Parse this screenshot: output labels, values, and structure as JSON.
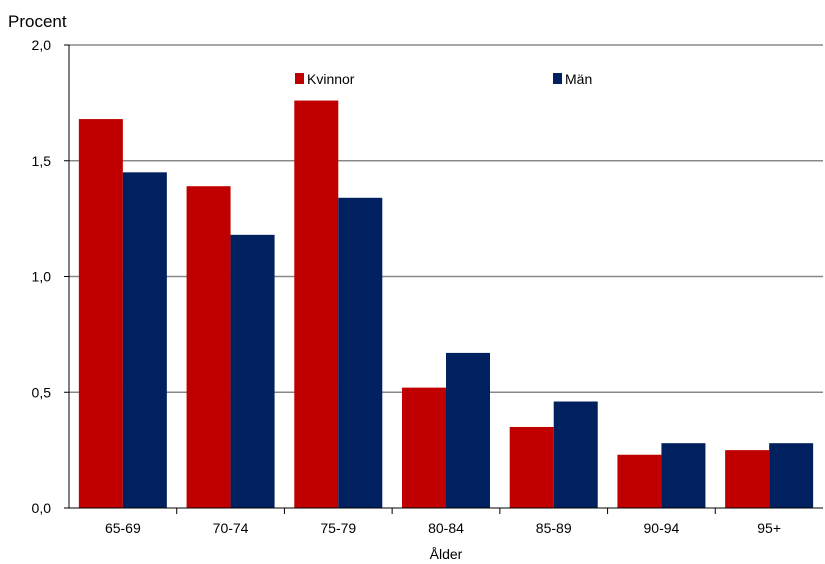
{
  "chart_data": {
    "type": "bar",
    "title": "",
    "ylabel": "Procent",
    "xlabel": "Ålder",
    "categories": [
      "65-69",
      "70-74",
      "75-79",
      "80-84",
      "85-89",
      "90-94",
      "95+"
    ],
    "series": [
      {
        "name": "Kvinnor",
        "color": "#c00000",
        "values": [
          1.68,
          1.39,
          1.76,
          0.52,
          0.35,
          0.23,
          0.25
        ]
      },
      {
        "name": "Män",
        "color": "#002060",
        "values": [
          1.45,
          1.18,
          1.34,
          0.67,
          0.46,
          0.28,
          0.28
        ]
      }
    ],
    "ylim": [
      0,
      2.0
    ],
    "yticks": [
      0.0,
      0.5,
      1.0,
      1.5,
      2.0
    ],
    "ytick_labels": [
      "0,0",
      "0,5",
      "1,0",
      "1,5",
      "2,0"
    ],
    "grid": true,
    "legend_position": "top-center"
  }
}
